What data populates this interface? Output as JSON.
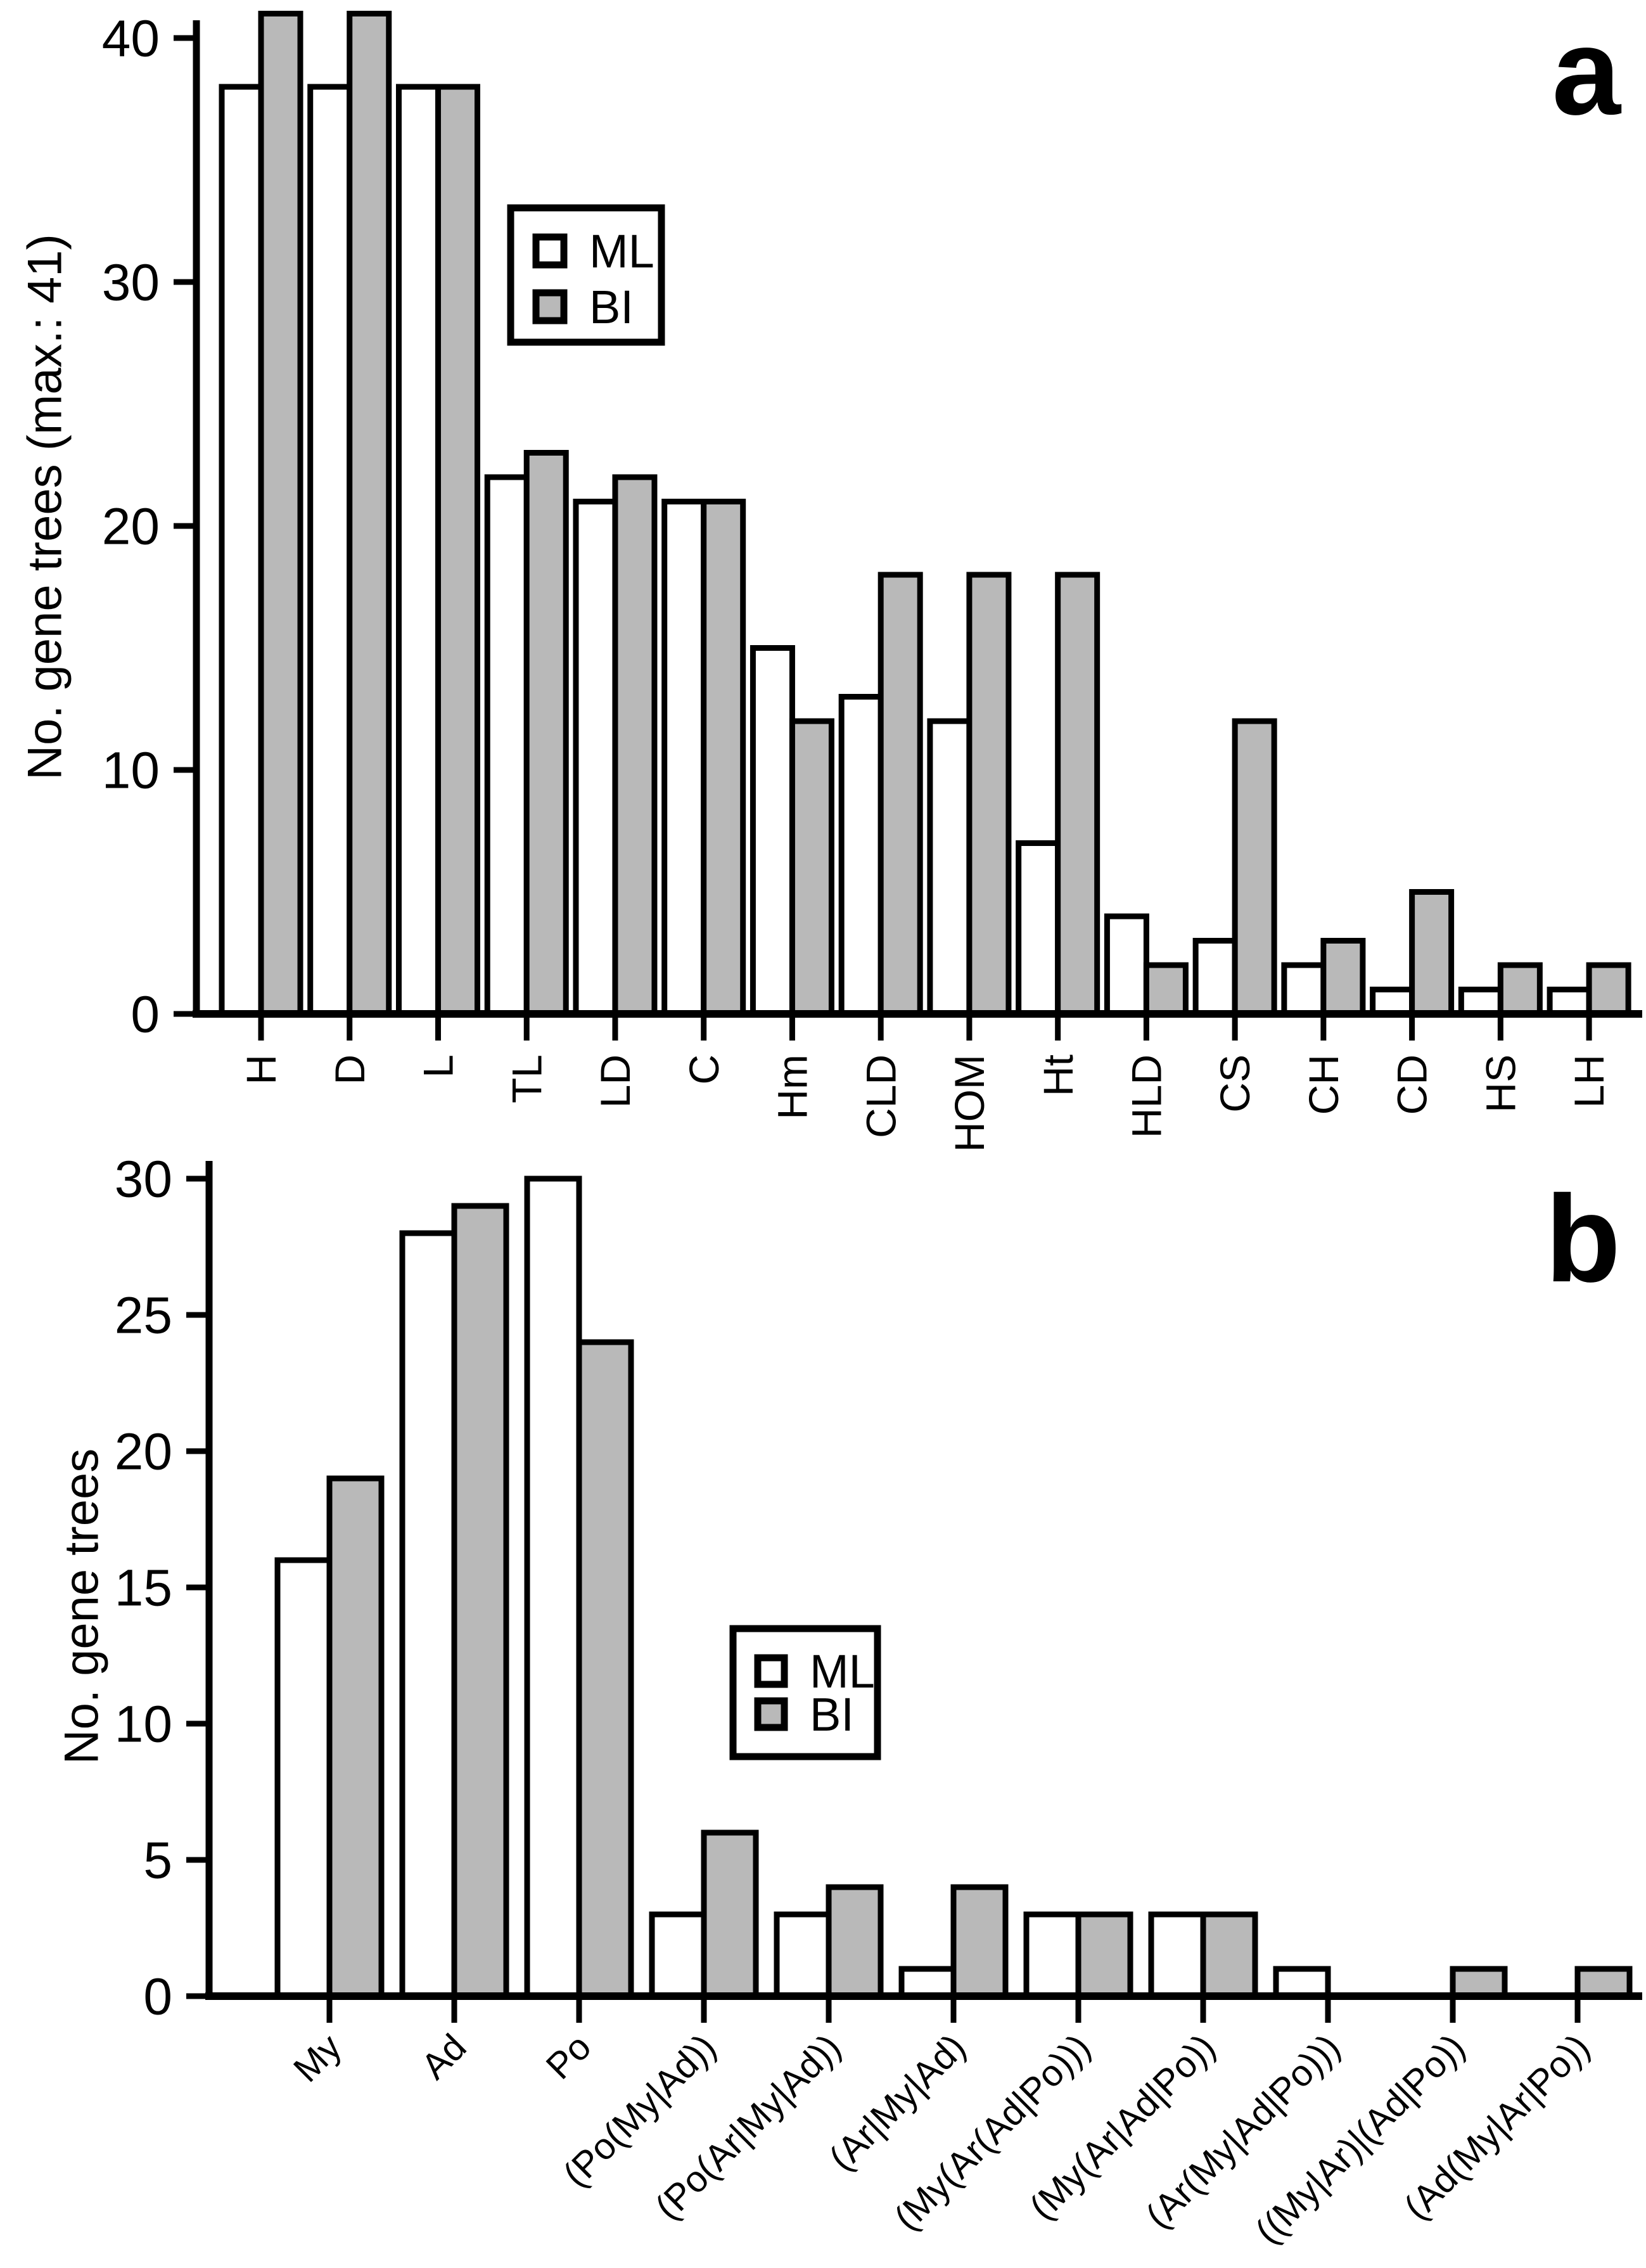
{
  "figure": {
    "background": "#ffffff",
    "panels": [
      "a",
      "b"
    ]
  },
  "colors": {
    "ml_fill": "#ffffff",
    "bi_fill": "#b9b9b9",
    "stroke": "#000000",
    "background": "#ffffff"
  },
  "chart_data": [
    {
      "type": "bar",
      "panel_letter": "a",
      "categories": [
        "H",
        "D",
        "L",
        "TL",
        "LD",
        "C",
        "Hm",
        "CLD",
        "HOM",
        "Ht",
        "HLD",
        "CS",
        "CH",
        "CD",
        "HS",
        "LH"
      ],
      "series": [
        {
          "name": "ML",
          "fill": "#ffffff",
          "values": [
            38,
            38,
            38,
            22,
            21,
            21,
            15,
            13,
            12,
            7,
            4,
            3,
            2,
            1,
            1,
            1
          ]
        },
        {
          "name": "BI",
          "fill": "#b9b9b9",
          "values": [
            41,
            41,
            38,
            23,
            22,
            21,
            12,
            18,
            18,
            18,
            2,
            12,
            3,
            5,
            2,
            2
          ]
        }
      ],
      "xlabel": "",
      "ylabel": "No. gene trees (max.: 41)",
      "ylim": [
        0,
        41
      ],
      "yticks": [
        0,
        10,
        20,
        30,
        40
      ],
      "grid": false,
      "legend": {
        "position": "upper-middle-left",
        "entries": [
          "ML",
          "BI"
        ]
      },
      "x_tick_label_rotation": 90
    },
    {
      "type": "bar",
      "panel_letter": "b",
      "categories": [
        "My",
        "Ad",
        "Po",
        "(Po(My|Ad))",
        "(Po(Ar|My|Ad))",
        "(Ar|My|Ad)",
        "(My(Ar(Ad|Po)))",
        "(My(Ar|Ad|Po))",
        "(Ar(My|Ad|Po)))",
        "((My|Ar)|(Ad|Po))",
        "(Ad(My|Ar|Po))"
      ],
      "series": [
        {
          "name": "ML",
          "fill": "#ffffff",
          "values": [
            16,
            28,
            30,
            3,
            3,
            1,
            3,
            3,
            1,
            0,
            0
          ]
        },
        {
          "name": "BI",
          "fill": "#b9b9b9",
          "values": [
            19,
            29,
            24,
            6,
            4,
            4,
            3,
            3,
            0,
            1,
            1
          ]
        }
      ],
      "xlabel": "",
      "ylabel": "No. gene trees",
      "ylim": [
        0,
        30
      ],
      "yticks": [
        0,
        5,
        10,
        15,
        20,
        25,
        30
      ],
      "grid": false,
      "legend": {
        "position": "middle-right-of-bars",
        "entries": [
          "ML",
          "BI"
        ]
      },
      "x_tick_label_rotation": 45
    }
  ]
}
